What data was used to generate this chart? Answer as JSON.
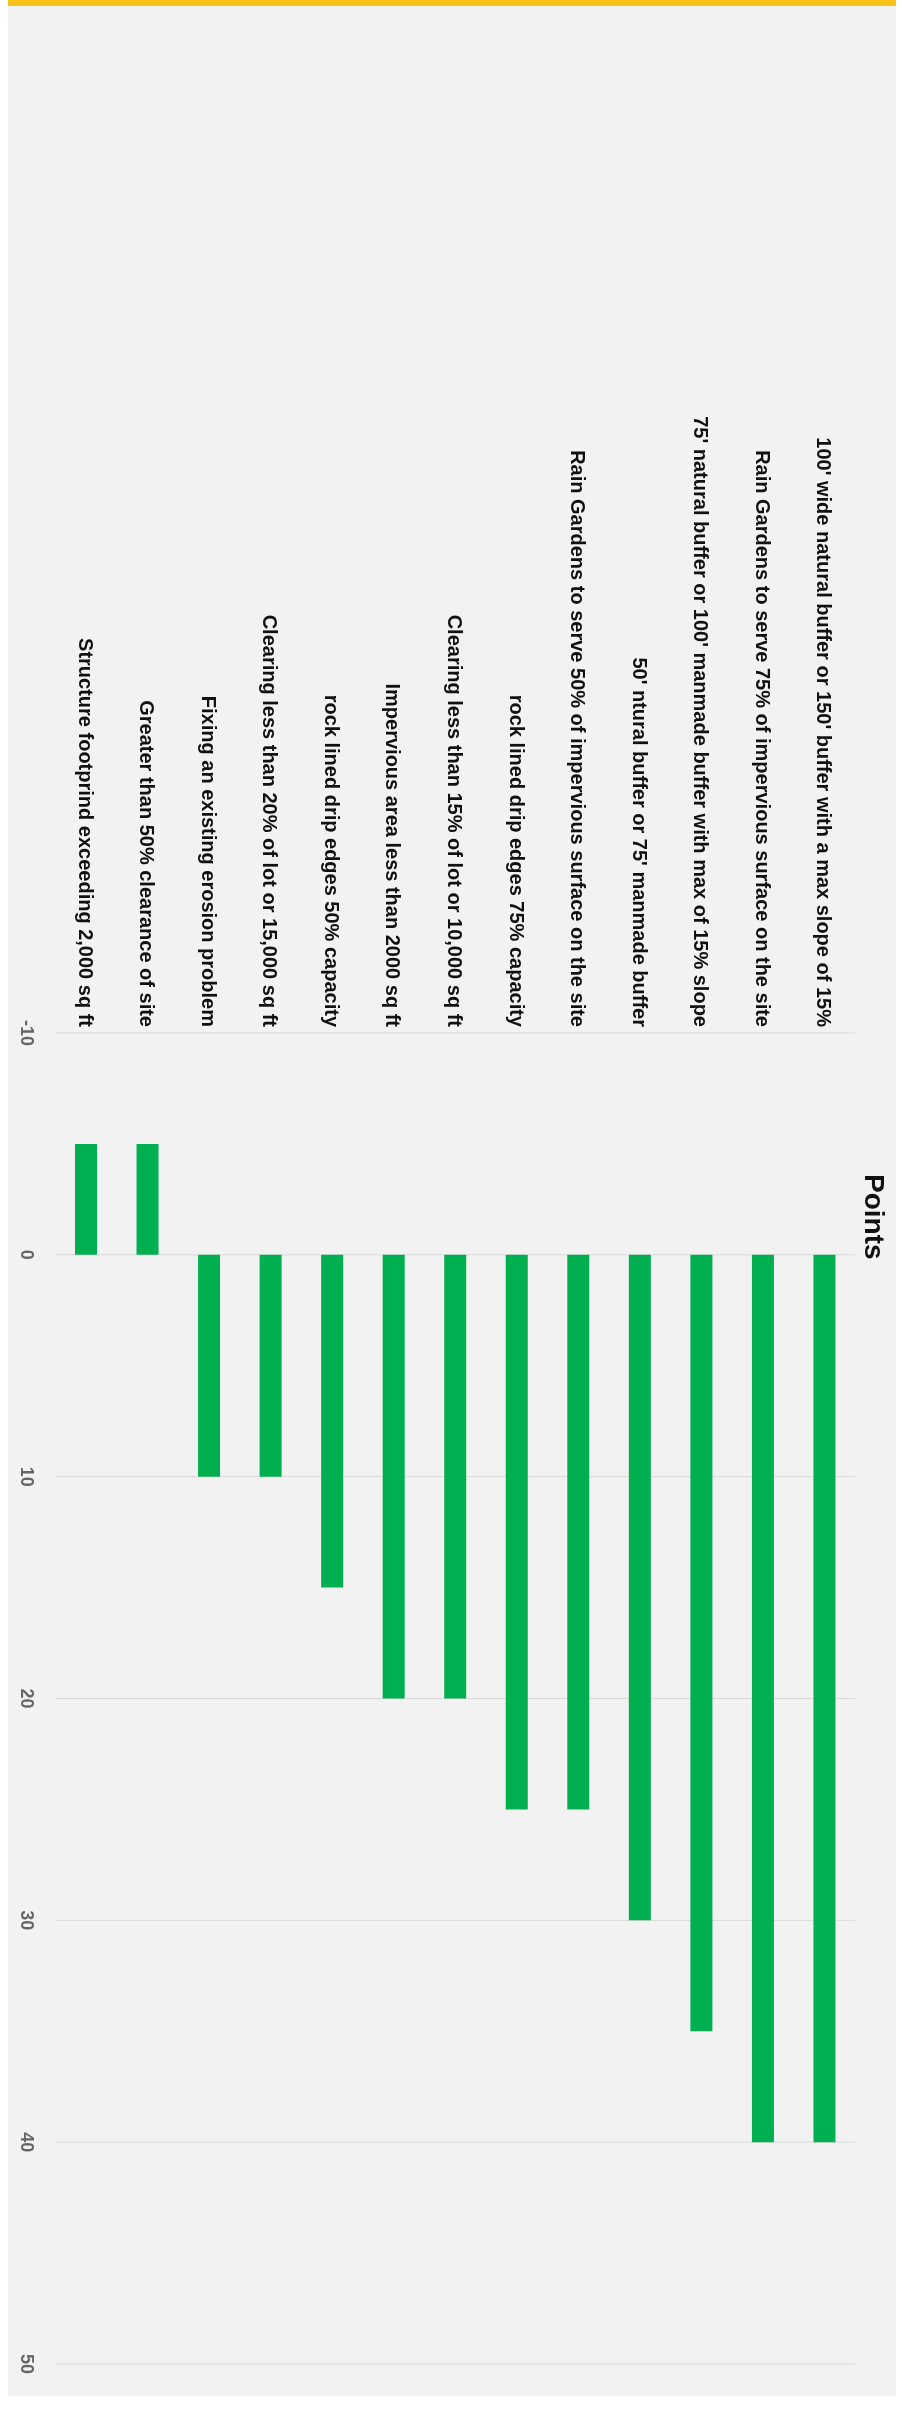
{
  "chart_data": {
    "type": "bar",
    "title": "Points",
    "categories": [
      "Structure footprind exceeding 2,000 sq ft",
      "Greater than 50% clearance of site",
      "Fixing an existing erosion problem",
      "Clearing less than 20% of lot or 15,000 sq ft",
      "rock lined drip edges 50% capacity",
      "Impervious area less than 2000 sq ft",
      "Clearing less than 15% of lot or 10,000 sq ft",
      "rock lined drip edges 75% capacity",
      "Rain Gardens to serve 50% of impervious surface on the site",
      "50' ntural buffer or 75' manmade buffer",
      "75' natural buffer or 100' manmade buffer with max of 15% slope",
      "Rain Gardens to serve 75% of impervious surface on the site",
      "100' wide natural buffer or 150' buffer with a max slope of 15%"
    ],
    "values": [
      -5,
      -5,
      10,
      10,
      15,
      20,
      20,
      25,
      25,
      30,
      35,
      40,
      40
    ],
    "color": "#00b050",
    "ylim": [
      50,
      -10
    ],
    "yticks": [
      -10,
      0,
      10,
      20,
      30,
      40,
      50
    ],
    "grid": "y"
  }
}
